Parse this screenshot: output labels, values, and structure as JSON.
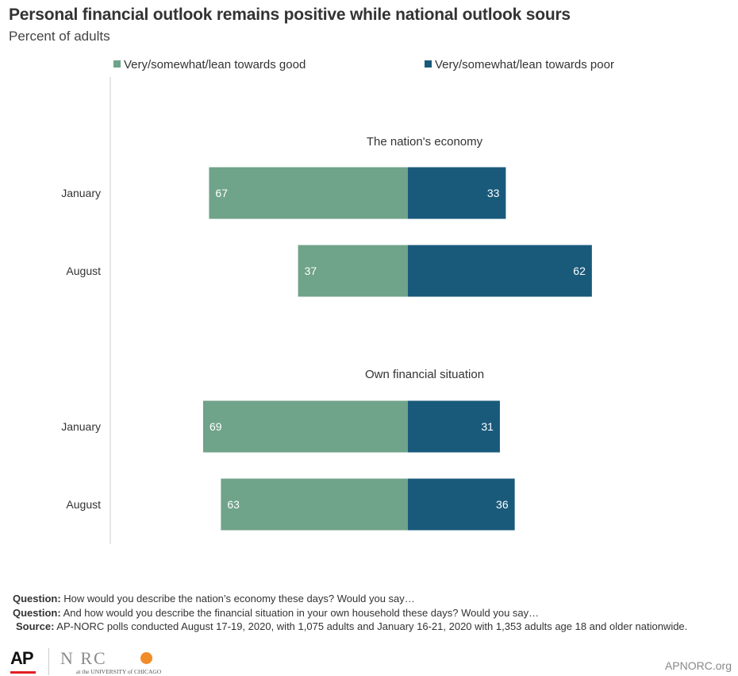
{
  "title": "Personal financial outlook remains positive while national outlook sours",
  "subtitle": "Percent of adults",
  "colors": {
    "good": "#6fa38a",
    "poor": "#195a7b",
    "axis": "#cccccc",
    "text": "#333333"
  },
  "chart_data": {
    "type": "bar",
    "orientation": "horizontal-diverging",
    "legend": {
      "position": "top",
      "entries": [
        "Very/somewhat/lean towards good",
        "Very/somewhat/lean towards poor"
      ]
    },
    "series_names": [
      "Very/somewhat/lean towards good",
      "Very/somewhat/lean towards poor"
    ],
    "groups": [
      {
        "label": "The nation's economy",
        "rows": [
          {
            "label": "January",
            "good": 67,
            "poor": 33
          },
          {
            "label": "August",
            "good": 37,
            "poor": 62
          }
        ]
      },
      {
        "label": "Own financial situation",
        "rows": [
          {
            "label": "January",
            "good": 69,
            "poor": 31
          },
          {
            "label": "August",
            "good": 63,
            "poor": 36
          }
        ]
      }
    ]
  },
  "notes": {
    "q1_label": "Question:",
    "q1_text": " How would you describe the nation’s economy these days? Would you say…",
    "q2_label": "Question:",
    "q2_text": " And how would you describe the financial situation in your own household these days? Would you say…",
    "source_label": "Source:",
    "source_text": " AP-NORC polls conducted August 17-19, 2020, with 1,075 adults and January 16-21, 2020 with  1,353 adults age 18 and older nationwide."
  },
  "footer": {
    "ap_logo_text": "AP",
    "norc_logo_text": "N  RC",
    "norc_logo_sub": "at the UNIVERSITY of CHICAGO",
    "url": "APNORC.org"
  }
}
